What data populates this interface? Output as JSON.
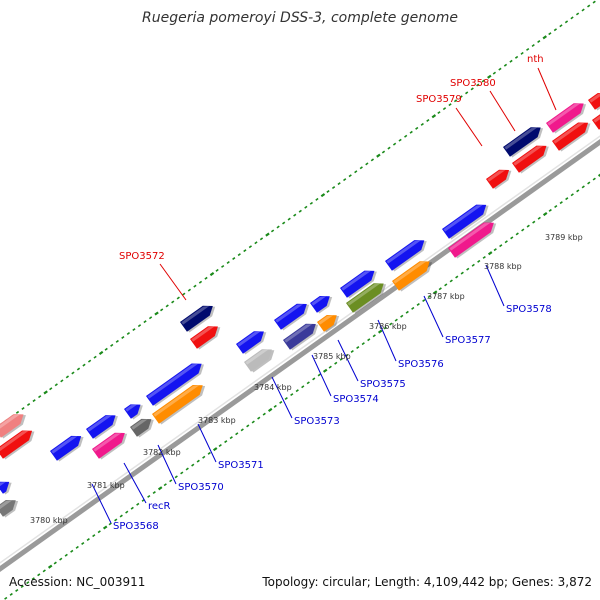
{
  "title": "Ruegeria pomeroyi DSS-3, complete genome",
  "footer": {
    "accession": "Accession: NC_003911",
    "stats": "Topology: circular; Length: 4,109,442 bp; Genes: 3,872"
  },
  "colors": {
    "tick": "#1a8a1a",
    "backbone": "#8a8a8a",
    "label_red": "#e00000",
    "label_blue": "#0000d0"
  },
  "kbp_labels": [
    "3780 kbp",
    "3781 kbp",
    "3782 kbp",
    "3783 kbp",
    "3784 kbp",
    "3785 kbp",
    "3786 kbp",
    "3787 kbp",
    "3788 kbp",
    "3789 kbp"
  ],
  "gene_labels": [
    {
      "text": "SPO3580",
      "color": "red"
    },
    {
      "text": "nth",
      "color": "red"
    },
    {
      "text": "SPO3579",
      "color": "red"
    },
    {
      "text": "SPO3572",
      "color": "red"
    },
    {
      "text": "SPO3578",
      "color": "blue"
    },
    {
      "text": "SPO3577",
      "color": "blue"
    },
    {
      "text": "SPO3576",
      "color": "blue"
    },
    {
      "text": "SPO3575",
      "color": "blue"
    },
    {
      "text": "SPO3574",
      "color": "blue"
    },
    {
      "text": "SPO3573",
      "color": "blue"
    },
    {
      "text": "SPO3571",
      "color": "blue"
    },
    {
      "text": "SPO3570",
      "color": "blue"
    },
    {
      "text": "recR",
      "color": "blue"
    },
    {
      "text": "SPO3568",
      "color": "blue"
    }
  ]
}
